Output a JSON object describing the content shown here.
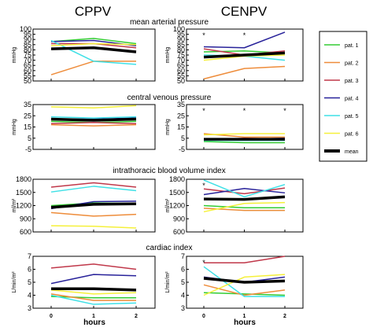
{
  "chart_data": {
    "type": "line",
    "column_titles": [
      "CPPV",
      "CENPV"
    ],
    "xlabel": "hours",
    "x": [
      0,
      1,
      2
    ],
    "x_tick_labels": [
      "0",
      "1",
      "2"
    ],
    "legend": [
      {
        "label": "pat. 1",
        "color": "#33cc33"
      },
      {
        "label": "pat. 2",
        "color": "#ee8c3a"
      },
      {
        "label": "pat. 3",
        "color": "#c0384a"
      },
      {
        "label": "pat. 4",
        "color": "#28229a"
      },
      {
        "label": "pat. 5",
        "color": "#3ee0e6"
      },
      {
        "label": "pat. 6",
        "color": "#f5f03a"
      },
      {
        "label": "mean",
        "color": "#000000"
      }
    ],
    "panels": [
      {
        "title": "mean arterial pressure",
        "ylabel": "mmHg",
        "ylim": [
          50,
          100
        ],
        "yticks": [
          50,
          55,
          60,
          65,
          70,
          75,
          80,
          85,
          90,
          95,
          100
        ],
        "CPPV": {
          "series": [
            {
              "name": "pat. 1",
              "values": [
                88,
                91,
                86
              ]
            },
            {
              "name": "pat. 2",
              "values": [
                56,
                69,
                69
              ]
            },
            {
              "name": "pat. 3",
              "values": [
                86,
                86,
                82
              ]
            },
            {
              "name": "pat. 4",
              "values": [
                88,
                89,
                84
              ]
            },
            {
              "name": "pat. 5",
              "values": [
                89,
                69,
                66
              ]
            },
            {
              "name": "pat. 6",
              "values": [
                84,
                86,
                85
              ]
            },
            {
              "name": "mean",
              "values": [
                81,
                82,
                78
              ]
            }
          ],
          "stars": []
        },
        "CENPV": {
          "series": [
            {
              "name": "pat. 1",
              "values": [
                78,
                79,
                77
              ]
            },
            {
              "name": "pat. 2",
              "values": [
                52,
                62,
                64
              ]
            },
            {
              "name": "pat. 3",
              "values": [
                81,
                75,
                79
              ]
            },
            {
              "name": "pat. 4",
              "values": [
                83,
                82,
                97
              ]
            },
            {
              "name": "pat. 5",
              "values": [
                75,
                74,
                70
              ]
            },
            {
              "name": "pat. 6",
              "values": [
                70,
                74,
                75
              ]
            },
            {
              "name": "mean",
              "values": [
                73,
                75,
                77
              ]
            }
          ],
          "stars": [
            0,
            1
          ]
        }
      },
      {
        "title": "central venous pressure",
        "ylabel": "mmHg",
        "ylim": [
          -5,
          35
        ],
        "yticks": [
          -5,
          5,
          15,
          25,
          35
        ],
        "CPPV": {
          "series": [
            {
              "name": "pat. 1",
              "values": [
                20,
                19,
                20
              ]
            },
            {
              "name": "pat. 2",
              "values": [
                17,
                16,
                17
              ]
            },
            {
              "name": "pat. 3",
              "values": [
                18,
                19,
                18
              ]
            },
            {
              "name": "pat. 4",
              "values": [
                22,
                22,
                23
              ]
            },
            {
              "name": "pat. 5",
              "values": [
                24,
                23,
                24
              ]
            },
            {
              "name": "pat. 6",
              "values": [
                33,
                32,
                34
              ]
            },
            {
              "name": "mean",
              "values": [
                22,
                21,
                22
              ]
            }
          ],
          "stars": []
        },
        "CENPV": {
          "series": [
            {
              "name": "pat. 1",
              "values": [
                2,
                1,
                1
              ]
            },
            {
              "name": "pat. 2",
              "values": [
                9,
                6,
                6
              ]
            },
            {
              "name": "pat. 3",
              "values": [
                3,
                5,
                4
              ]
            },
            {
              "name": "pat. 4",
              "values": [
                4,
                4,
                5
              ]
            },
            {
              "name": "pat. 5",
              "values": [
                3,
                3,
                3
              ]
            },
            {
              "name": "pat. 6",
              "values": [
                8,
                9,
                9
              ]
            },
            {
              "name": "mean",
              "values": [
                4,
                4,
                4
              ]
            }
          ],
          "stars": [
            0,
            1,
            2
          ]
        }
      },
      {
        "title": "intrathoracic blood volume index",
        "ylabel": "ml/m²",
        "ylim": [
          600,
          1800
        ],
        "yticks": [
          600,
          900,
          1200,
          1500,
          1800
        ],
        "CPPV": {
          "series": [
            {
              "name": "pat. 1",
              "values": [
                1200,
                1260,
                1250
              ]
            },
            {
              "name": "pat. 2",
              "values": [
                1040,
                960,
                1000
              ]
            },
            {
              "name": "pat. 3",
              "values": [
                1620,
                1720,
                1620
              ]
            },
            {
              "name": "pat. 4",
              "values": [
                1130,
                1290,
                1300
              ]
            },
            {
              "name": "pat. 5",
              "values": [
                1510,
                1640,
                1540
              ]
            },
            {
              "name": "pat. 6",
              "values": [
                740,
                730,
                690
              ]
            },
            {
              "name": "mean",
              "values": [
                1160,
                1230,
                1240
              ]
            }
          ],
          "stars": []
        },
        "CENPV": {
          "series": [
            {
              "name": "pat. 1",
              "values": [
                1200,
                1150,
                1150
              ]
            },
            {
              "name": "pat. 2",
              "values": [
                1140,
                1090,
                1090
              ]
            },
            {
              "name": "pat. 3",
              "values": [
                1580,
                1470,
                1600
              ]
            },
            {
              "name": "pat. 4",
              "values": [
                1450,
                1590,
                1490
              ]
            },
            {
              "name": "pat. 5",
              "values": [
                1780,
                1400,
                1680
              ]
            },
            {
              "name": "pat. 6",
              "values": [
                1060,
                1250,
                1270
              ]
            },
            {
              "name": "mean",
              "values": [
                1350,
                1340,
                1400
              ]
            }
          ],
          "stars": [
            0
          ]
        }
      },
      {
        "title": "cardiac index",
        "ylabel": "L/min/m²",
        "ylim": [
          3,
          7
        ],
        "yticks": [
          3,
          4,
          5,
          6,
          7
        ],
        "CPPV": {
          "series": [
            {
              "name": "pat. 1",
              "values": [
                3.9,
                3.8,
                3.8
              ]
            },
            {
              "name": "pat. 2",
              "values": [
                4.1,
                3.6,
                3.6
              ]
            },
            {
              "name": "pat. 3",
              "values": [
                6.1,
                6.4,
                6.0
              ]
            },
            {
              "name": "pat. 4",
              "values": [
                4.9,
                5.6,
                5.5
              ]
            },
            {
              "name": "pat. 5",
              "values": [
                4.0,
                3.3,
                3.4
              ]
            },
            {
              "name": "pat. 6",
              "values": [
                4.4,
                4.1,
                4.2
              ]
            },
            {
              "name": "mean",
              "values": [
                4.5,
                4.5,
                4.4
              ]
            }
          ],
          "stars": []
        },
        "CENPV": {
          "series": [
            {
              "name": "pat. 1",
              "values": [
                4.2,
                4.1,
                4.0
              ]
            },
            {
              "name": "pat. 2",
              "values": [
                4.8,
                4.0,
                4.4
              ]
            },
            {
              "name": "pat. 3",
              "values": [
                6.5,
                6.5,
                7.0
              ]
            },
            {
              "name": "pat. 4",
              "values": [
                5.4,
                5.0,
                5.4
              ]
            },
            {
              "name": "pat. 5",
              "values": [
                6.2,
                3.9,
                3.9
              ]
            },
            {
              "name": "pat. 6",
              "values": [
                4.0,
                5.4,
                5.6
              ]
            },
            {
              "name": "mean",
              "values": [
                5.3,
                5.0,
                5.1
              ]
            }
          ],
          "stars": [
            0
          ]
        }
      }
    ]
  }
}
